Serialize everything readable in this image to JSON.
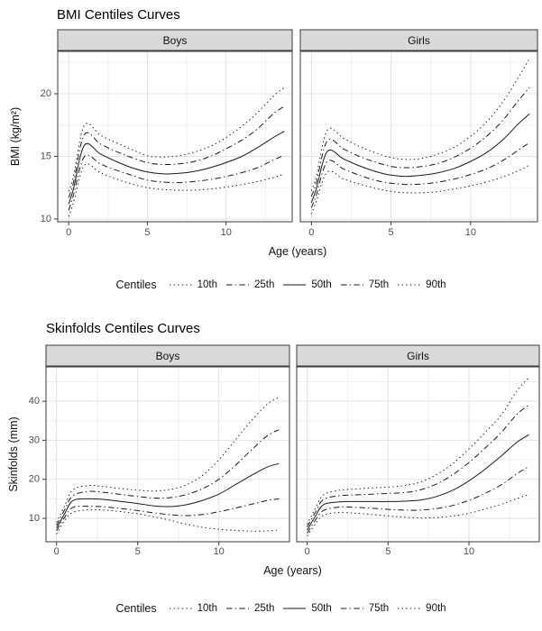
{
  "chart_data": {
    "type": "line",
    "colors": {
      "line": "#1a1a1a",
      "strip_bg": "#d9d9d9",
      "panel_border": "#3a3a3a",
      "grid_major": "#e3e3e3",
      "grid_minor": "#f0f0f0",
      "tick_label": "#4d4d4d"
    },
    "legend": {
      "title": "Centiles",
      "entries": [
        {
          "label": "10th",
          "style": "dotted"
        },
        {
          "label": "25th",
          "style": "dotdash"
        },
        {
          "label": "50th",
          "style": "solid"
        },
        {
          "label": "75th",
          "style": "dotdash"
        },
        {
          "label": "90th",
          "style": "dotted"
        }
      ]
    },
    "charts": [
      {
        "title": "BMI Centiles Curves",
        "xlabel": "Age (years)",
        "ylabel": "BMI (kg/m²)",
        "x_ticks": [
          0,
          5,
          10
        ],
        "y_ticks": [
          10,
          15,
          20
        ],
        "x_minor": [
          2.5,
          7.5,
          12.5
        ],
        "y_minor": [
          12.5,
          17.5,
          22.5
        ],
        "xlim": [
          -0.7,
          14.2
        ],
        "ylim": [
          9.78,
          23.38
        ],
        "ages": [
          0,
          0.3,
          1,
          2,
          3,
          4,
          5,
          6,
          7,
          8,
          9,
          10,
          11,
          12,
          13,
          13.7
        ],
        "facets": [
          {
            "label": "Boys",
            "series": [
              {
                "name": "10th",
                "style": "dotted",
                "values": [
                  10.2,
                  11.3,
                  14.3,
                  13.7,
                  13.2,
                  12.8,
                  12.5,
                  12.35,
                  12.3,
                  12.3,
                  12.4,
                  12.55,
                  12.75,
                  13.0,
                  13.3,
                  13.6
                ]
              },
              {
                "name": "25th",
                "style": "dotdash",
                "values": [
                  10.7,
                  11.9,
                  15.0,
                  14.4,
                  13.9,
                  13.5,
                  13.1,
                  12.95,
                  12.9,
                  13.0,
                  13.15,
                  13.4,
                  13.7,
                  14.1,
                  14.7,
                  15.1
                ]
              },
              {
                "name": "50th",
                "style": "solid",
                "values": [
                  11.2,
                  12.4,
                  15.9,
                  15.2,
                  14.6,
                  14.1,
                  13.75,
                  13.6,
                  13.65,
                  13.8,
                  14.1,
                  14.5,
                  15.0,
                  15.7,
                  16.5,
                  17.0
                ]
              },
              {
                "name": "75th",
                "style": "dotdash",
                "values": [
                  11.7,
                  12.9,
                  16.75,
                  16.0,
                  15.4,
                  14.9,
                  14.5,
                  14.35,
                  14.4,
                  14.6,
                  15.0,
                  15.6,
                  16.3,
                  17.2,
                  18.4,
                  19.0
                ]
              },
              {
                "name": "90th",
                "style": "dotted",
                "values": [
                  12.2,
                  13.4,
                  17.5,
                  16.7,
                  16.1,
                  15.55,
                  15.05,
                  14.95,
                  15.05,
                  15.35,
                  15.8,
                  16.5,
                  17.4,
                  18.5,
                  19.8,
                  20.5
                ]
              }
            ]
          },
          {
            "label": "Girls",
            "series": [
              {
                "name": "10th",
                "style": "dotted",
                "values": [
                  10.4,
                  11.4,
                  13.75,
                  13.2,
                  12.8,
                  12.45,
                  12.2,
                  12.1,
                  12.1,
                  12.2,
                  12.4,
                  12.65,
                  12.95,
                  13.35,
                  13.85,
                  14.3
                ]
              },
              {
                "name": "25th",
                "style": "dotdash",
                "values": [
                  10.9,
                  11.9,
                  14.6,
                  14.0,
                  13.5,
                  13.1,
                  12.85,
                  12.75,
                  12.8,
                  12.95,
                  13.2,
                  13.55,
                  14.0,
                  14.65,
                  15.5,
                  16.1
                ]
              },
              {
                "name": "50th",
                "style": "solid",
                "values": [
                  11.3,
                  12.4,
                  15.4,
                  14.8,
                  14.25,
                  13.8,
                  13.5,
                  13.4,
                  13.5,
                  13.7,
                  14.05,
                  14.6,
                  15.3,
                  16.3,
                  17.6,
                  18.4
                ]
              },
              {
                "name": "75th",
                "style": "dotdash",
                "values": [
                  11.8,
                  12.9,
                  16.25,
                  15.6,
                  15.0,
                  14.55,
                  14.2,
                  14.1,
                  14.2,
                  14.45,
                  14.95,
                  15.65,
                  16.6,
                  17.85,
                  19.45,
                  20.5
                ]
              },
              {
                "name": "90th",
                "style": "dotted",
                "values": [
                  12.25,
                  13.4,
                  17.1,
                  16.45,
                  15.8,
                  15.3,
                  14.9,
                  14.75,
                  14.85,
                  15.2,
                  15.75,
                  16.6,
                  17.75,
                  19.3,
                  21.3,
                  22.8
                ]
              }
            ]
          }
        ]
      },
      {
        "title": "Skinfolds Centiles Curves",
        "xlabel": "Age (years)",
        "ylabel": "Skinfolds (mm)",
        "x_ticks": [
          0,
          5,
          10
        ],
        "y_ticks": [
          10,
          20,
          30,
          40
        ],
        "x_minor": [
          2.5,
          7.5,
          12.5
        ],
        "y_minor": [
          5,
          15,
          25,
          35,
          45
        ],
        "xlim": [
          -0.65,
          14.35
        ],
        "ylim": [
          4.0,
          48.8
        ],
        "ages": [
          0,
          0.5,
          1,
          2,
          3,
          4,
          5,
          6,
          7,
          8,
          9,
          10,
          11,
          12,
          13,
          13.7
        ],
        "facets": [
          {
            "label": "Boys",
            "series": [
              {
                "name": "10th",
                "style": "dotted",
                "values": [
                  6.0,
                  9.5,
                  11.5,
                  12.2,
                  12.1,
                  11.7,
                  11.2,
                  10.4,
                  9.5,
                  8.5,
                  7.7,
                  7.2,
                  6.9,
                  6.7,
                  6.8,
                  7.0
                ]
              },
              {
                "name": "25th",
                "style": "dotdash",
                "values": [
                  6.8,
                  10.3,
                  12.8,
                  13.1,
                  12.9,
                  12.5,
                  12.0,
                  11.4,
                  10.9,
                  10.7,
                  11.0,
                  11.7,
                  12.6,
                  13.6,
                  14.6,
                  15.0
                ]
              },
              {
                "name": "50th",
                "style": "solid",
                "values": [
                  7.5,
                  11.2,
                  14.5,
                  15.0,
                  14.8,
                  14.3,
                  13.8,
                  13.2,
                  13.0,
                  13.5,
                  14.6,
                  16.2,
                  18.6,
                  21.0,
                  23.2,
                  24.0
                ]
              },
              {
                "name": "75th",
                "style": "dotdash",
                "values": [
                  8.2,
                  12.2,
                  15.8,
                  16.9,
                  16.6,
                  16.1,
                  15.6,
                  15.2,
                  15.3,
                  16.1,
                  17.6,
                  20.0,
                  23.5,
                  27.5,
                  31.2,
                  32.7
                ]
              },
              {
                "name": "90th",
                "style": "dotted",
                "values": [
                  9.0,
                  13.2,
                  17.3,
                  18.4,
                  18.1,
                  17.6,
                  17.2,
                  17.0,
                  17.4,
                  18.6,
                  21.0,
                  25.0,
                  30.0,
                  35.0,
                  39.3,
                  41.0
                ]
              }
            ]
          },
          {
            "label": "Girls",
            "series": [
              {
                "name": "10th",
                "style": "dotted",
                "values": [
                  5.5,
                  8.5,
                  10.8,
                  11.5,
                  11.3,
                  11.0,
                  10.6,
                  10.3,
                  10.1,
                  10.2,
                  10.6,
                  11.3,
                  12.4,
                  13.6,
                  15.1,
                  16.1
                ]
              },
              {
                "name": "25th",
                "style": "dotdash",
                "values": [
                  6.2,
                  9.5,
                  12.0,
                  12.9,
                  12.8,
                  12.6,
                  12.3,
                  12.1,
                  12.1,
                  12.5,
                  13.3,
                  14.6,
                  16.4,
                  18.6,
                  21.5,
                  23.3
                ]
              },
              {
                "name": "50th",
                "style": "solid",
                "values": [
                  7.0,
                  10.5,
                  13.5,
                  14.2,
                  14.3,
                  14.3,
                  14.3,
                  14.4,
                  14.7,
                  15.6,
                  17.2,
                  19.6,
                  22.6,
                  26.0,
                  29.6,
                  31.4
                ]
              },
              {
                "name": "75th",
                "style": "dotdash",
                "values": [
                  7.8,
                  11.5,
                  14.8,
                  15.8,
                  16.0,
                  16.2,
                  16.4,
                  16.6,
                  17.3,
                  18.8,
                  21.2,
                  24.3,
                  28.0,
                  32.0,
                  36.8,
                  39.0
                ]
              },
              {
                "name": "90th",
                "style": "dotted",
                "values": [
                  8.5,
                  12.5,
                  16.0,
                  17.2,
                  17.5,
                  17.8,
                  18.0,
                  18.4,
                  19.3,
                  21.2,
                  24.0,
                  27.8,
                  32.0,
                  36.5,
                  42.8,
                  46.0
                ]
              }
            ]
          }
        ]
      }
    ]
  }
}
